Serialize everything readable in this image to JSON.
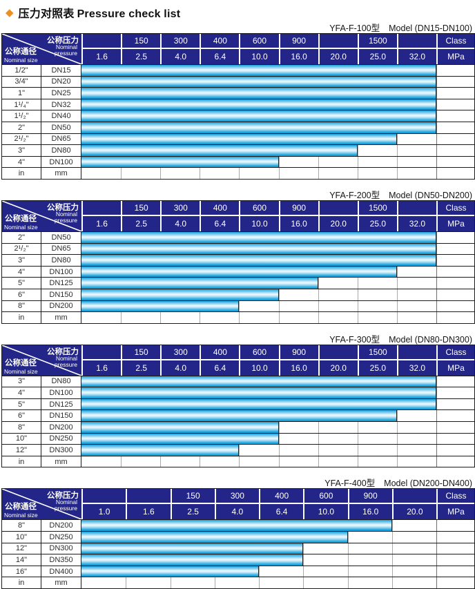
{
  "title": {
    "diamond": "◆",
    "cn": "压力对照表",
    "en": "Pressure check list"
  },
  "colors": {
    "accent_orange": "#ef8f1f",
    "header_navy": "#232688",
    "bar_cyan": "#1aa3dc",
    "bar_highlight": "#eef9fe"
  },
  "corner": {
    "pressure_cn": "公称压力",
    "pressure_en_1": "Nominal",
    "pressure_en_2": "pressure",
    "size_cn": "公称通径",
    "size_en": "Nominal size"
  },
  "tables": [
    {
      "model": "YFA-F-100型",
      "range": "Model (DN15-DN100)",
      "class_row": [
        "",
        "150",
        "300",
        "400",
        "600",
        "900",
        "",
        "1500",
        ""
      ],
      "class_label": "Class",
      "mpa_row": [
        "1.6",
        "2.5",
        "4.0",
        "6.4",
        "10.0",
        "16.0",
        "20.0",
        "25.0",
        "32.0"
      ],
      "mpa_label": "MPa",
      "rows": [
        {
          "inch": "1/2\"",
          "dn": "DN15",
          "cols": 9
        },
        {
          "inch": "3/4\"",
          "dn": "DN20",
          "cols": 9
        },
        {
          "inch": "1\"",
          "dn": "DN25",
          "cols": 9
        },
        {
          "inch": "1¹/₄\"",
          "dn": "DN32",
          "cols": 9
        },
        {
          "inch": "1¹/₂\"",
          "dn": "DN40",
          "cols": 9
        },
        {
          "inch": "2\"",
          "dn": "DN50",
          "cols": 9
        },
        {
          "inch": "2¹/₂\"",
          "dn": "DN65",
          "cols": 8
        },
        {
          "inch": "3\"",
          "dn": "DN80",
          "cols": 7
        },
        {
          "inch": "4\"",
          "dn": "DN100",
          "cols": 5
        },
        {
          "inch": "in",
          "dn": "mm",
          "cols": 0
        }
      ]
    },
    {
      "model": "YFA-F-200型",
      "range": "Model (DN50-DN200)",
      "class_row": [
        "",
        "150",
        "300",
        "400",
        "600",
        "900",
        "",
        "1500",
        ""
      ],
      "class_label": "Class",
      "mpa_row": [
        "1.6",
        "2.5",
        "4.0",
        "6.4",
        "10.0",
        "16.0",
        "20.0",
        "25.0",
        "32.0"
      ],
      "mpa_label": "MPa",
      "rows": [
        {
          "inch": "2\"",
          "dn": "DN50",
          "cols": 9
        },
        {
          "inch": "2¹/₂\"",
          "dn": "DN65",
          "cols": 9
        },
        {
          "inch": "3\"",
          "dn": "DN80",
          "cols": 9
        },
        {
          "inch": "4\"",
          "dn": "DN100",
          "cols": 8
        },
        {
          "inch": "5\"",
          "dn": "DN125",
          "cols": 6
        },
        {
          "inch": "6\"",
          "dn": "DN150",
          "cols": 5
        },
        {
          "inch": "8\"",
          "dn": "DN200",
          "cols": 4
        },
        {
          "inch": "in",
          "dn": "mm",
          "cols": 0
        }
      ]
    },
    {
      "model": "YFA-F-300型",
      "range": "Model (DN80-DN300)",
      "class_row": [
        "",
        "150",
        "300",
        "400",
        "600",
        "900",
        "",
        "1500",
        ""
      ],
      "class_label": "Class",
      "mpa_row": [
        "1.6",
        "2.5",
        "4.0",
        "6.4",
        "10.0",
        "16.0",
        "20.0",
        "25.0",
        "32.0"
      ],
      "mpa_label": "MPa",
      "rows": [
        {
          "inch": "3\"",
          "dn": "DN80",
          "cols": 9
        },
        {
          "inch": "4\"",
          "dn": "DN100",
          "cols": 9
        },
        {
          "inch": "5\"",
          "dn": "DN125",
          "cols": 9
        },
        {
          "inch": "6\"",
          "dn": "DN150",
          "cols": 8
        },
        {
          "inch": "8\"",
          "dn": "DN200",
          "cols": 5
        },
        {
          "inch": "10\"",
          "dn": "DN250",
          "cols": 5
        },
        {
          "inch": "12\"",
          "dn": "DN300",
          "cols": 4
        },
        {
          "inch": "in",
          "dn": "mm",
          "cols": 0
        }
      ]
    },
    {
      "model": "YFA-F-400型",
      "range": "Model (DN200-DN400)",
      "class_row": [
        "",
        "",
        "150",
        "300",
        "400",
        "600",
        "900",
        ""
      ],
      "class_label": "Class",
      "mpa_row": [
        "1.0",
        "1.6",
        "2.5",
        "4.0",
        "6.4",
        "10.0",
        "16.0",
        "20.0"
      ],
      "mpa_label": "MPa",
      "rows": [
        {
          "inch": "8\"",
          "dn": "DN200",
          "cols": 7
        },
        {
          "inch": "10\"",
          "dn": "DN250",
          "cols": 6
        },
        {
          "inch": "12\"",
          "dn": "DN300",
          "cols": 5
        },
        {
          "inch": "14\"",
          "dn": "DN350",
          "cols": 5
        },
        {
          "inch": "16\"",
          "dn": "DN400",
          "cols": 4
        },
        {
          "inch": "in",
          "dn": "mm",
          "cols": 0
        }
      ]
    }
  ]
}
